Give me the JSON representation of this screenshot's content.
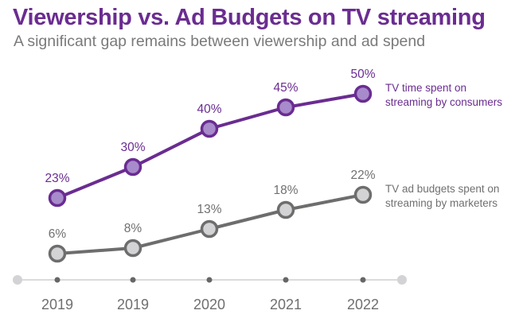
{
  "chart_data": {
    "type": "line",
    "title": "Viewership vs. Ad Budgets on TV streaming",
    "subtitle": "A significant gap remains between viewership and ad spend",
    "categories": [
      "2019",
      "2019",
      "2020",
      "2021",
      "2022"
    ],
    "xlabel": "",
    "ylabel": "",
    "ylim": [
      0,
      50
    ],
    "grid": false,
    "series": [
      {
        "name": "TV time spent on streaming by consumers",
        "name_lines": [
          "TV time spent on",
          "streaming by consumers"
        ],
        "values": [
          23,
          30,
          40,
          45,
          50
        ],
        "labels": [
          "23%",
          "30%",
          "40%",
          "45%",
          "50%"
        ],
        "line_color": "#6a2c91",
        "marker_fill": "#a88bcb",
        "label_color": "#6a2c91"
      },
      {
        "name": "TV ad budgets spent on streaming by marketers",
        "name_lines": [
          "TV ad budgets spent on",
          "streaming by marketers"
        ],
        "values": [
          6,
          8,
          13,
          18,
          22
        ],
        "labels": [
          "6%",
          "8%",
          "13%",
          "18%",
          "22%"
        ],
        "line_color": "#6d6d6d",
        "marker_fill": "#d3d3d5",
        "label_color": "#707070"
      }
    ],
    "legend": "right-of-line-ends"
  }
}
